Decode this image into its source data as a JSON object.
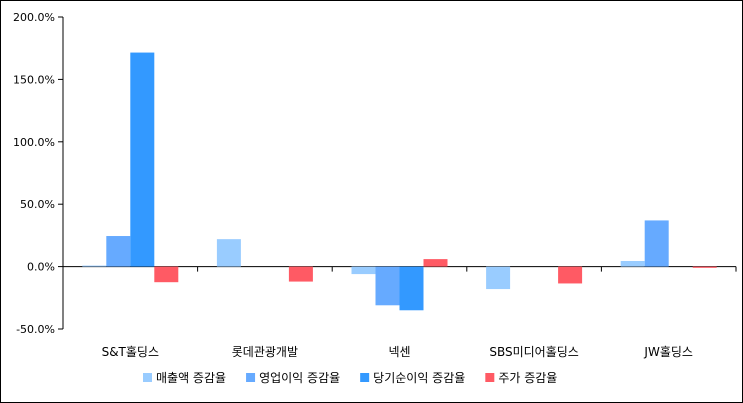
{
  "chart_data": {
    "type": "bar",
    "categories": [
      "S&T홀딩스",
      "롯데관광개발",
      "넥센",
      "SBS미디어홀딩스",
      "JW홀딩스"
    ],
    "series": [
      {
        "name": "매출액 증감율",
        "color": "#99ccff",
        "values": [
          0.8,
          22.0,
          -6.0,
          -18.0,
          4.5
        ]
      },
      {
        "name": "영업이익 증감율",
        "color": "#66aaff",
        "values": [
          24.5,
          null,
          -31.0,
          null,
          37.0
        ]
      },
      {
        "name": "당기순이익 증감율",
        "color": "#3399ff",
        "values": [
          171.5,
          null,
          -35.0,
          null,
          null
        ]
      },
      {
        "name": "주가 증감율",
        "color": "#ff5a64",
        "values": [
          -12.5,
          -12.0,
          6.0,
          -13.5,
          -1.0
        ]
      }
    ],
    "ylim": [
      -50,
      200
    ],
    "yticks": [
      -50,
      0,
      50,
      100,
      150,
      200
    ],
    "ytick_labels": [
      "-50.0%",
      "0.0%",
      "50.0%",
      "100.0%",
      "150.0%",
      "200.0%"
    ],
    "legend_position": "bottom",
    "grid": false
  }
}
